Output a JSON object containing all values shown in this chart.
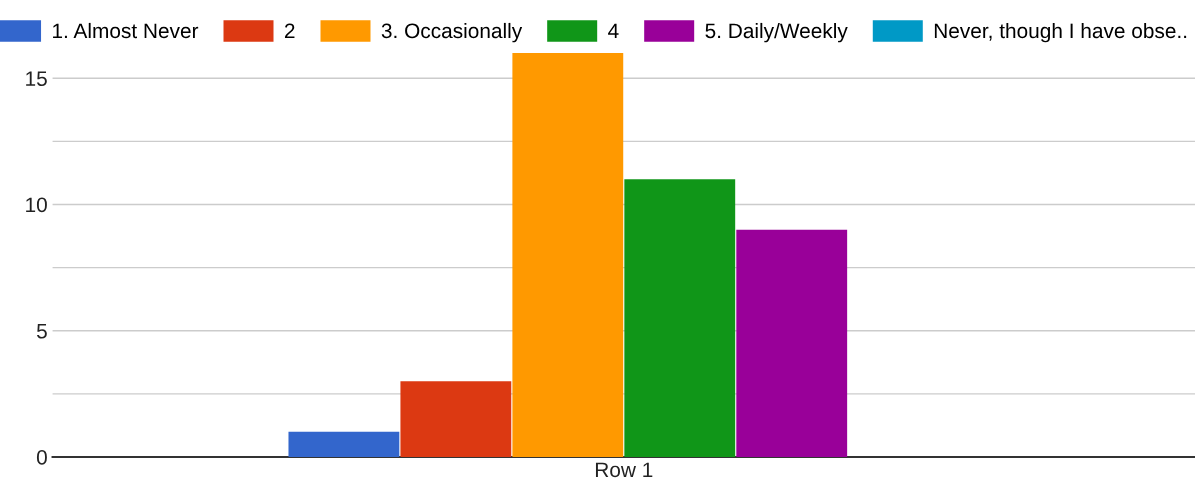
{
  "chart_data": {
    "type": "bar",
    "categories": [
      "Row 1"
    ],
    "series": [
      {
        "name": "1. Almost Never",
        "color": "#3366cc",
        "values": [
          1
        ]
      },
      {
        "name": "2",
        "color": "#dc3912",
        "values": [
          3
        ]
      },
      {
        "name": "3. Occasionally",
        "color": "#ff9900",
        "values": [
          16
        ]
      },
      {
        "name": "4",
        "color": "#109618",
        "values": [
          11
        ]
      },
      {
        "name": "5. Daily/Weekly",
        "color": "#990099",
        "values": [
          9
        ]
      },
      {
        "name": "Never, though I have obse..",
        "color": "#0099c6",
        "values": [
          0
        ]
      }
    ],
    "ylim": [
      0,
      16
    ],
    "yticks": [
      0,
      {
        "value": 2.5,
        "label": null
      },
      5,
      {
        "value": 7.5,
        "label": null
      },
      10,
      {
        "value": 12.5,
        "label": null
      },
      15
    ],
    "grid": "y",
    "legend": "top"
  }
}
